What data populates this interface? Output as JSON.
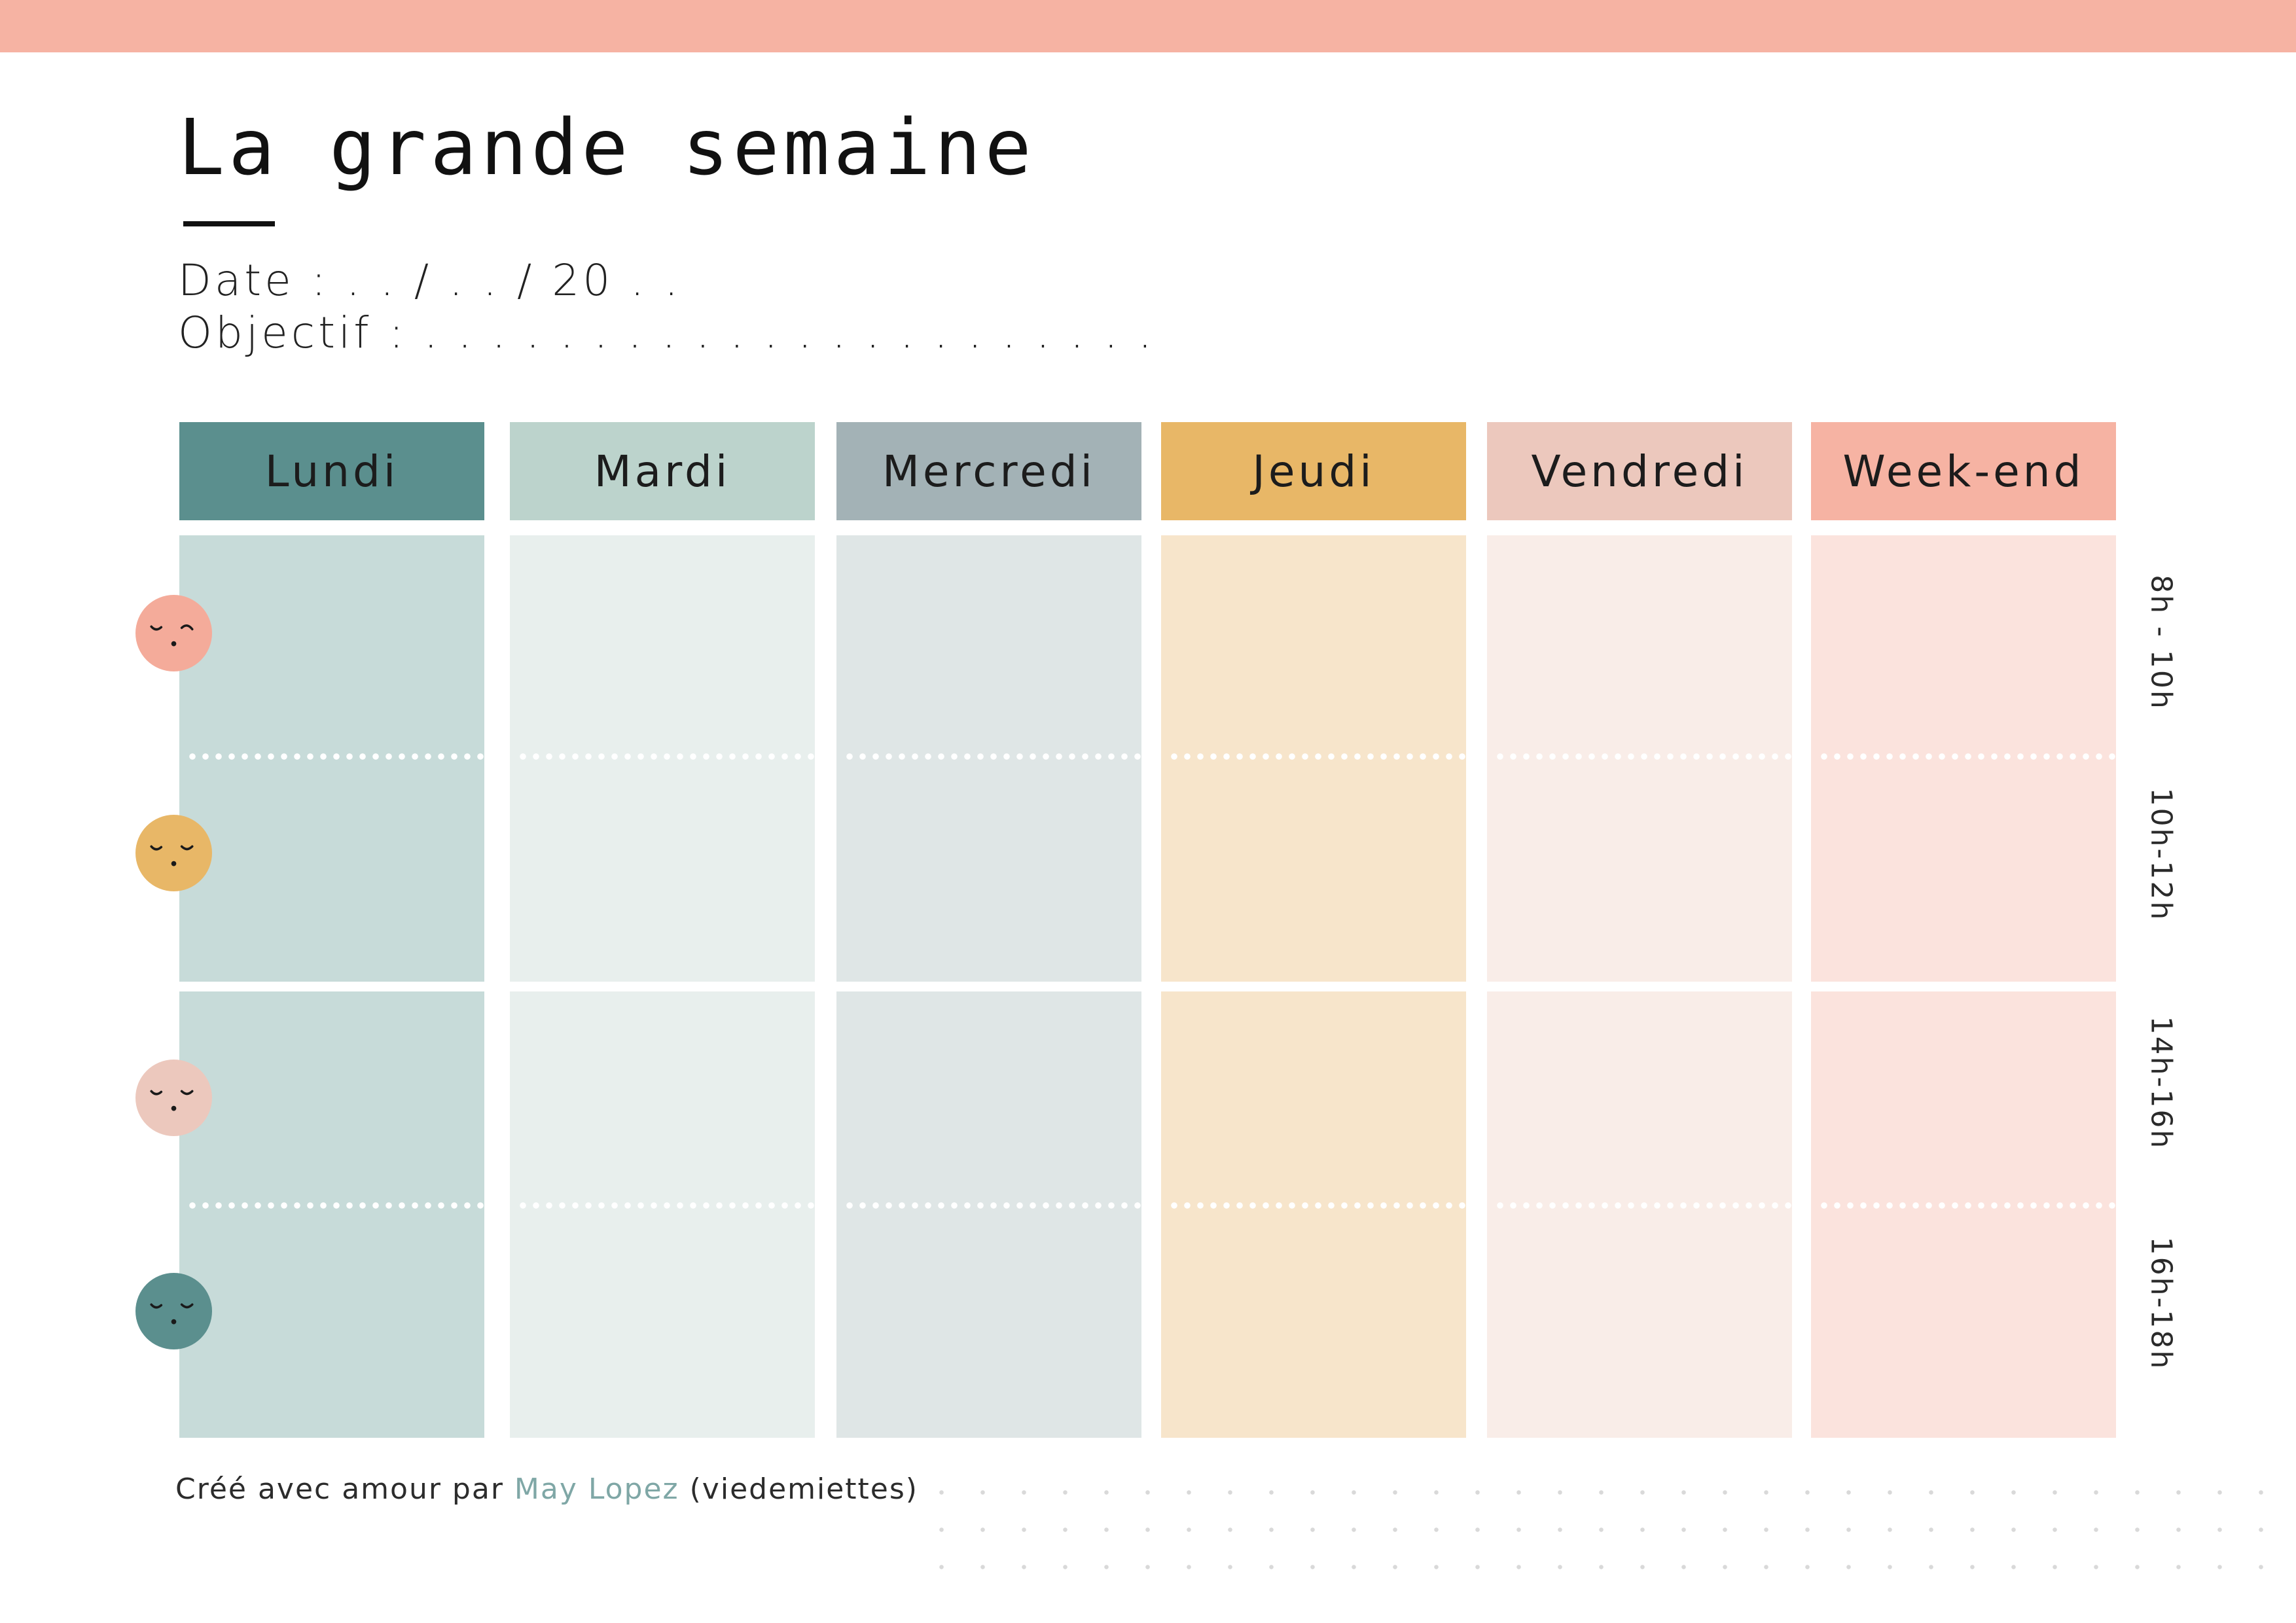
{
  "title": "La grande semaine",
  "date_line": "Date : . . / . . / 20 . .",
  "objective_line": "Objectif : . . . . . . . . . . . . . . . . . . . . . .",
  "days": [
    {
      "label": "Lundi",
      "header_color": "#5b8f8e",
      "cell_color": "#c7dbd9"
    },
    {
      "label": "Mardi",
      "header_color": "#bcd3cc",
      "cell_color": "#e8efed"
    },
    {
      "label": "Mercredi",
      "header_color": "#a3b2b6",
      "cell_color": "#dfe6e6"
    },
    {
      "label": "Jeudi",
      "header_color": "#e8b767",
      "cell_color": "#f7e5cb"
    },
    {
      "label": "Vendredi",
      "header_color": "#ecc8bd",
      "cell_color": "#f9ede8"
    },
    {
      "label": "Week-end",
      "header_color": "#f6b3a3",
      "cell_color": "#fbe3dd"
    }
  ],
  "time_slots": [
    "8h - 10h",
    "10h-12h",
    "14h-16h",
    "16h-18h"
  ],
  "faces": [
    {
      "icon": "sleepy-face-icon",
      "color": "#f4ab9a"
    },
    {
      "icon": "sleepy-face-icon",
      "color": "#e8b767"
    },
    {
      "icon": "sleepy-face-icon",
      "color": "#ecc8bd"
    },
    {
      "icon": "sleepy-face-icon",
      "color": "#5b8f8e"
    }
  ],
  "footer": {
    "prefix": "Créé avec amour par",
    "author": "May Lopez",
    "suffix": "(viedemiettes)"
  },
  "colors": {
    "top_bar": "#f6b3a3",
    "author_accent": "#7fa7a6"
  }
}
